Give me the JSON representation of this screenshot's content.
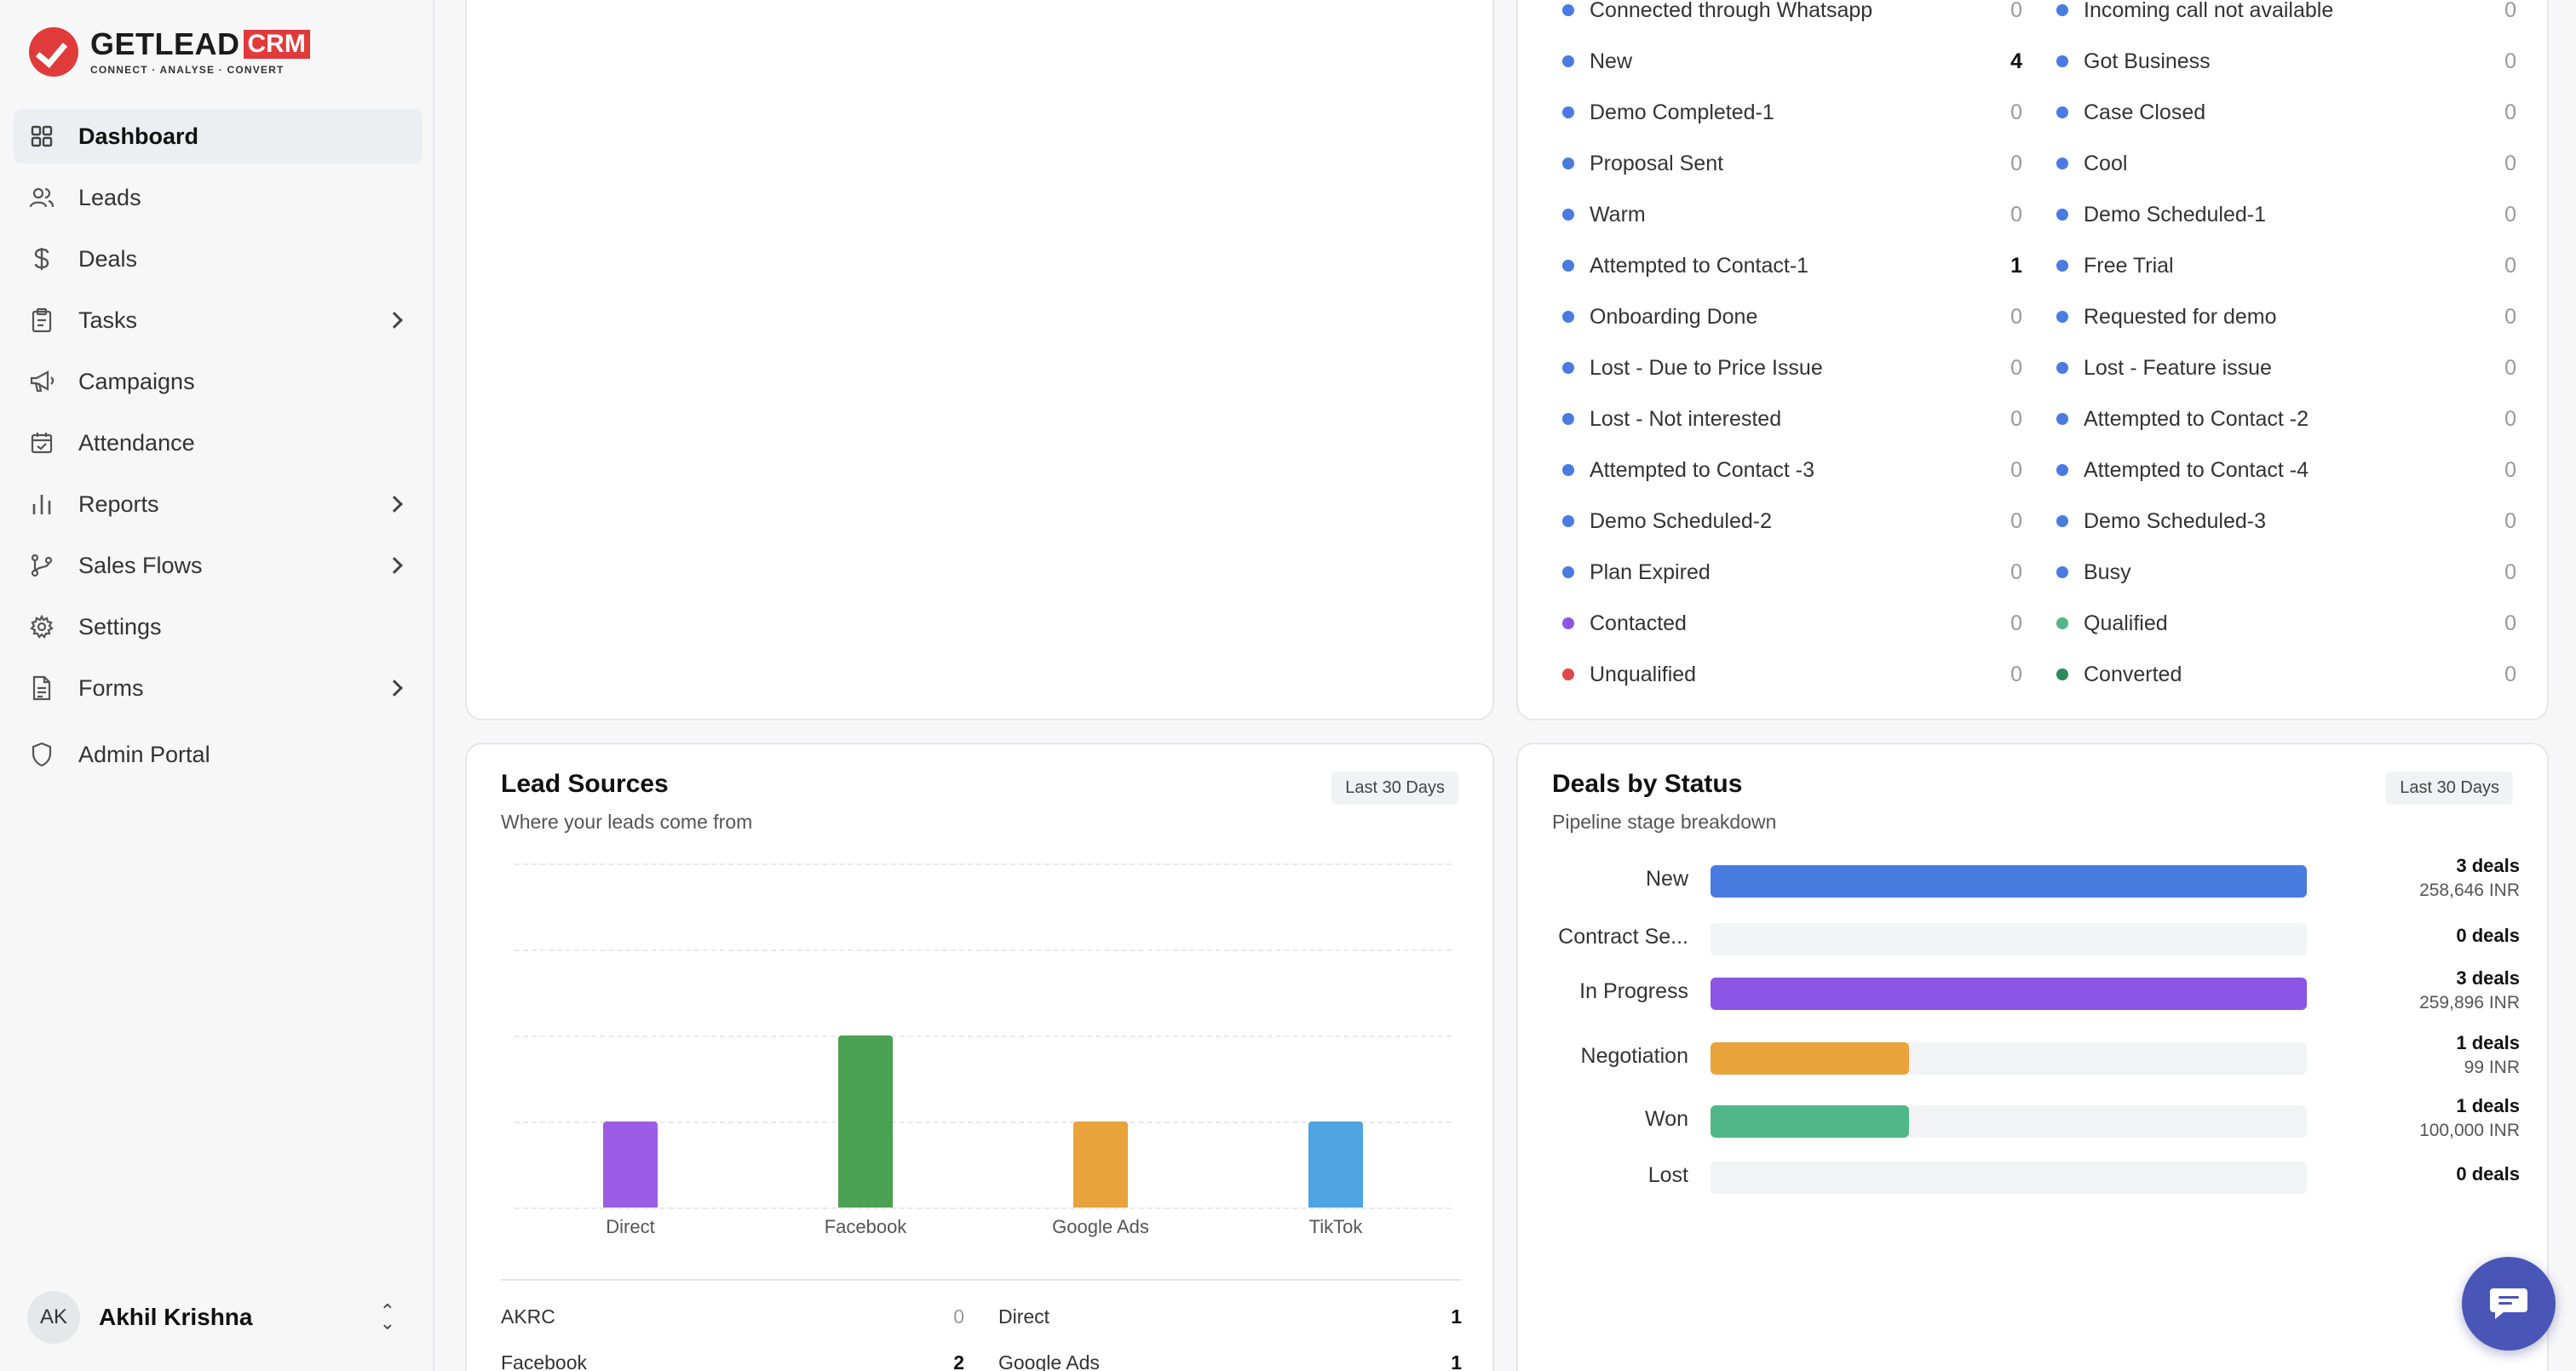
{
  "brand": {
    "name": "GETLEAD",
    "suffix": "CRM",
    "tagline": "CONNECT  ·  ANALYSE  ·  CONVERT"
  },
  "nav": {
    "items": [
      {
        "label": "Dashboard",
        "icon": "grid-icon",
        "active": true,
        "expandable": false
      },
      {
        "label": "Leads",
        "icon": "users-icon",
        "active": false,
        "expandable": false
      },
      {
        "label": "Deals",
        "icon": "dollar-icon",
        "active": false,
        "expandable": false
      },
      {
        "label": "Tasks",
        "icon": "clipboard-icon",
        "active": false,
        "expandable": true
      },
      {
        "label": "Campaigns",
        "icon": "megaphone-icon",
        "active": false,
        "expandable": false
      },
      {
        "label": "Attendance",
        "icon": "calendar-check-icon",
        "active": false,
        "expandable": false
      },
      {
        "label": "Reports",
        "icon": "bar-chart-icon",
        "active": false,
        "expandable": true
      },
      {
        "label": "Sales Flows",
        "icon": "git-branch-icon",
        "active": false,
        "expandable": true
      },
      {
        "label": "Settings",
        "icon": "gear-icon",
        "active": false,
        "expandable": false
      },
      {
        "label": "Forms",
        "icon": "document-icon",
        "active": false,
        "expandable": true
      }
    ],
    "admin": {
      "label": "Admin Portal",
      "icon": "shield-icon"
    }
  },
  "user": {
    "initials": "AK",
    "name": "Akhil Krishna"
  },
  "lead_status": {
    "left": [
      {
        "label": "Connected through Whatsapp",
        "count": "0",
        "color": "#4a7be0"
      },
      {
        "label": "New",
        "count": "4",
        "color": "#4a7be0"
      },
      {
        "label": "Demo Completed-1",
        "count": "0",
        "color": "#4a7be0"
      },
      {
        "label": "Proposal Sent",
        "count": "0",
        "color": "#4a7be0"
      },
      {
        "label": "Warm",
        "count": "0",
        "color": "#4a7be0"
      },
      {
        "label": "Attempted to Contact-1",
        "count": "1",
        "color": "#4a7be0"
      },
      {
        "label": "Onboarding Done",
        "count": "0",
        "color": "#4a7be0"
      },
      {
        "label": "Lost - Due to Price Issue",
        "count": "0",
        "color": "#4a7be0"
      },
      {
        "label": "Lost - Not interested",
        "count": "0",
        "color": "#4a7be0"
      },
      {
        "label": "Attempted to Contact -3",
        "count": "0",
        "color": "#4a7be0"
      },
      {
        "label": "Demo Scheduled-2",
        "count": "0",
        "color": "#4a7be0"
      },
      {
        "label": "Plan Expired",
        "count": "0",
        "color": "#4a7be0"
      },
      {
        "label": "Contacted",
        "count": "0",
        "color": "#8b55e6"
      },
      {
        "label": "Unqualified",
        "count": "0",
        "color": "#e04848"
      }
    ],
    "right": [
      {
        "label": "Incoming call not available",
        "count": "0",
        "color": "#4a7be0"
      },
      {
        "label": "Got Business",
        "count": "0",
        "color": "#4a7be0"
      },
      {
        "label": "Case Closed",
        "count": "0",
        "color": "#4a7be0"
      },
      {
        "label": "Cool",
        "count": "0",
        "color": "#4a7be0"
      },
      {
        "label": "Demo Scheduled-1",
        "count": "0",
        "color": "#4a7be0"
      },
      {
        "label": "Free Trial",
        "count": "0",
        "color": "#4a7be0"
      },
      {
        "label": "Requested for demo",
        "count": "0",
        "color": "#4a7be0"
      },
      {
        "label": "Lost - Feature issue",
        "count": "0",
        "color": "#4a7be0"
      },
      {
        "label": "Attempted to Contact -2",
        "count": "0",
        "color": "#4a7be0"
      },
      {
        "label": "Attempted to Contact -4",
        "count": "0",
        "color": "#4a7be0"
      },
      {
        "label": "Demo Scheduled-3",
        "count": "0",
        "color": "#4a7be0"
      },
      {
        "label": "Busy",
        "count": "0",
        "color": "#4a7be0"
      },
      {
        "label": "Qualified",
        "count": "0",
        "color": "#52b788"
      },
      {
        "label": "Converted",
        "count": "0",
        "color": "#2f8a5a"
      }
    ]
  },
  "lead_sources": {
    "title": "Lead Sources",
    "subtitle": "Where your leads come from",
    "range": "Last 30 Days",
    "chart_data": {
      "type": "bar",
      "categories": [
        "Direct",
        "Facebook",
        "Google Ads",
        "TikTok"
      ],
      "values": [
        1,
        2,
        1,
        1
      ],
      "colors": [
        "#9b5de5",
        "#4aa152",
        "#e8a33a",
        "#4ea3e0"
      ],
      "ylim": [
        0,
        4
      ]
    },
    "list": [
      {
        "label": "AKRC",
        "value": "0"
      },
      {
        "label": "Direct",
        "value": "1"
      },
      {
        "label": "Facebook",
        "value": "2"
      },
      {
        "label": "Google Ads",
        "value": "1"
      }
    ]
  },
  "deals_by_status": {
    "title": "Deals by Status",
    "subtitle": "Pipeline stage breakdown",
    "range": "Last 30 Days",
    "rows": [
      {
        "label": "New",
        "count": "3 deals",
        "amount": "258,646 INR",
        "fill": 1.0,
        "color": "#4a7be0"
      },
      {
        "label": "Contract Se...",
        "count": "0 deals",
        "amount": "",
        "fill": 0,
        "color": "#4a7be0"
      },
      {
        "label": "In Progress",
        "count": "3 deals",
        "amount": "259,896 INR",
        "fill": 1.0,
        "color": "#8b55e6"
      },
      {
        "label": "Negotiation",
        "count": "1 deals",
        "amount": "99 INR",
        "fill": 0.333,
        "color": "#e8a33a"
      },
      {
        "label": "Won",
        "count": "1 deals",
        "amount": "100,000 INR",
        "fill": 0.333,
        "color": "#52b788"
      },
      {
        "label": "Lost",
        "count": "0 deals",
        "amount": "",
        "fill": 0,
        "color": "#4a7be0"
      }
    ]
  }
}
